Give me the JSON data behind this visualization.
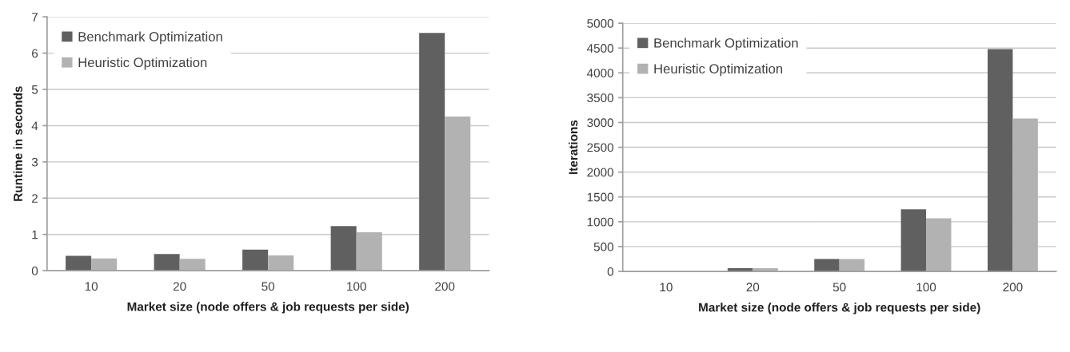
{
  "chart_data": [
    {
      "type": "bar",
      "categories": [
        "10",
        "20",
        "50",
        "100",
        "200"
      ],
      "xlabel": "Market size (node offers & job requests per side)",
      "ylabel": "Runtime in seconds",
      "series": [
        {
          "name": "Benchmark Optimization",
          "color": "#606060",
          "values": [
            0.41,
            0.46,
            0.58,
            1.23,
            6.56
          ]
        },
        {
          "name": "Heuristic Optimization",
          "color": "#b2b2b2",
          "values": [
            0.34,
            0.33,
            0.42,
            1.06,
            4.25
          ]
        }
      ],
      "ylim": [
        0,
        7
      ],
      "yticks": [
        0,
        1,
        2,
        3,
        4,
        5,
        6,
        7
      ],
      "grid": "y",
      "legend": "top left"
    },
    {
      "type": "bar",
      "categories": [
        "10",
        "20",
        "50",
        "100",
        "200"
      ],
      "xlabel": "Market size (node offers & job requests per side)",
      "ylabel": "Iterations",
      "series": [
        {
          "name": "Benchmark Optimization",
          "color": "#606060",
          "values": [
            null,
            65,
            250,
            1250,
            4480
          ]
        },
        {
          "name": "Heuristic Optimization",
          "color": "#b2b2b2",
          "values": [
            null,
            65,
            250,
            1070,
            3080
          ]
        }
      ],
      "ylim": [
        0,
        5000
      ],
      "yticks": [
        0,
        500,
        1000,
        1500,
        2000,
        2500,
        3000,
        3500,
        4000,
        4500,
        5000
      ],
      "grid": "y",
      "legend": "top left"
    }
  ]
}
